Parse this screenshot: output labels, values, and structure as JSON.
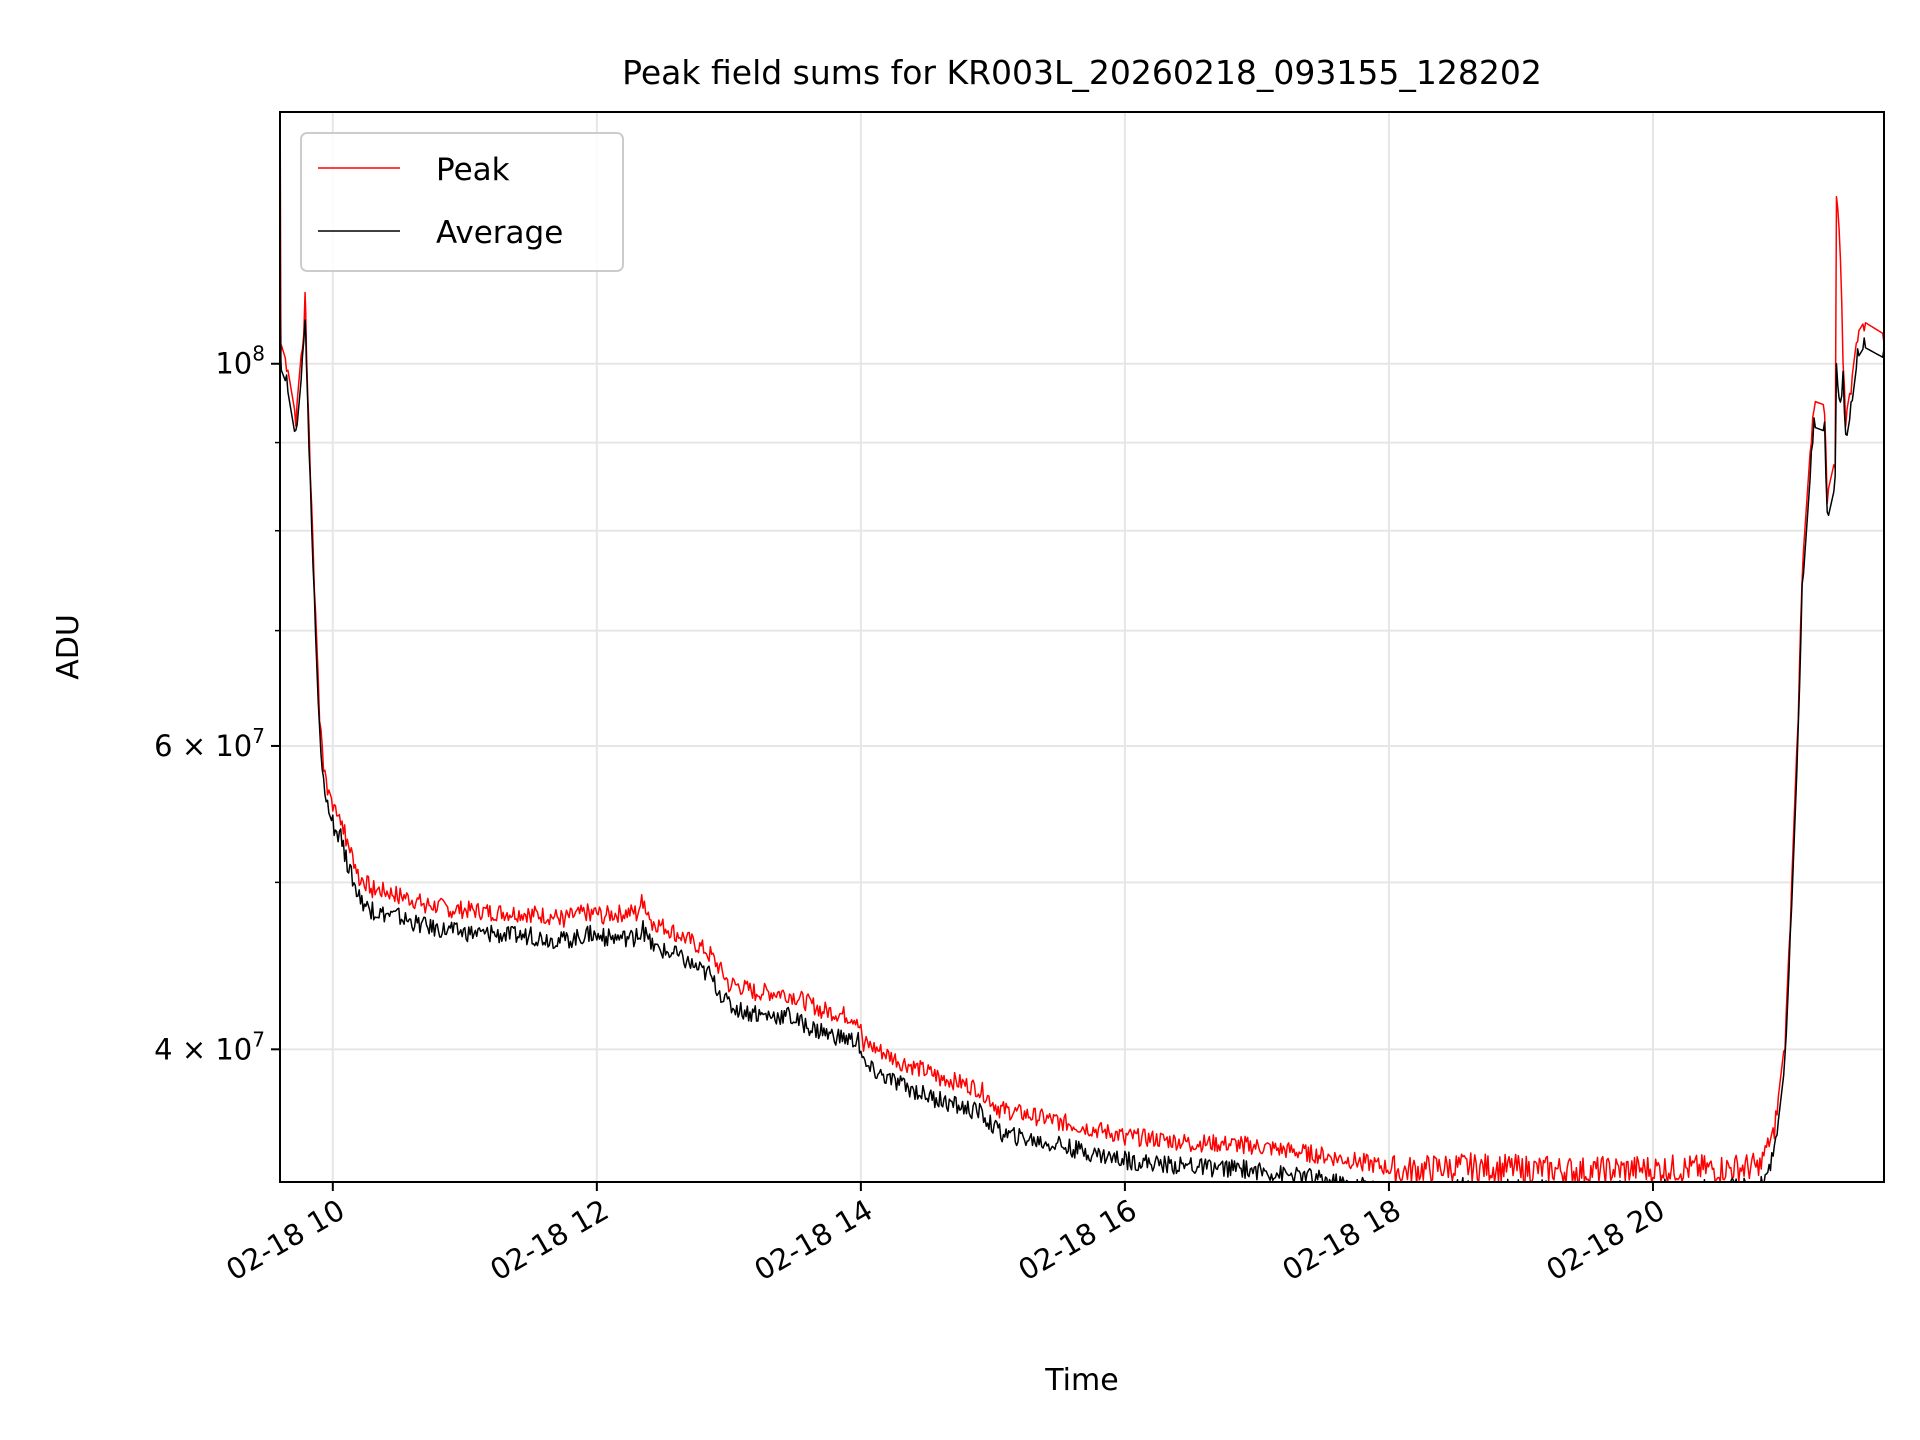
{
  "chart_data": {
    "type": "line",
    "title": "Peak field sums for KR003L_20260218_093155_128202",
    "xlabel": "Time",
    "ylabel": "ADU",
    "yscale": "log",
    "xlim": [
      9.6,
      21.75
    ],
    "ylim": [
      33500000,
      140000000
    ],
    "grid": true,
    "legend_position": "upper-left",
    "x_ticks": [
      {
        "value": 10,
        "label": "02-18 10"
      },
      {
        "value": 12,
        "label": "02-18 12"
      },
      {
        "value": 14,
        "label": "02-18 14"
      },
      {
        "value": 16,
        "label": "02-18 16"
      },
      {
        "value": 18,
        "label": "02-18 18"
      },
      {
        "value": 20,
        "label": "02-18 20"
      }
    ],
    "y_major_ticks": [
      {
        "value": 100000000,
        "base": "10",
        "exp": "8"
      },
      {
        "value": 60000000,
        "base": "6 × 10",
        "exp": "7"
      },
      {
        "value": 40000000,
        "base": "4 × 10",
        "exp": "7"
      }
    ],
    "y_minor_ticks": [
      50000000,
      70000000,
      80000000,
      90000000
    ],
    "noise": {
      "amplitude": 0.012,
      "step_hours": 0.01,
      "hi_noise_start": 18.0,
      "hi_noise_end": 20.8
    },
    "series": [
      {
        "name": "Peak",
        "color": "#ff0000",
        "offset": 1.012,
        "x": [
          9.6,
          9.601,
          9.607,
          9.65,
          9.72,
          9.77,
          9.78,
          9.79,
          9.795,
          9.8,
          9.81,
          9.83,
          9.86,
          9.9,
          9.93,
          9.96,
          10.0,
          10.06,
          10.1,
          10.2,
          10.3,
          10.5,
          10.7,
          10.9,
          11.2,
          11.5,
          11.75,
          11.95,
          12.05,
          12.3,
          12.35,
          12.42,
          12.6,
          12.85,
          13.0,
          13.2,
          13.45,
          13.7,
          13.98,
          14.02,
          14.3,
          14.6,
          14.9,
          15.05,
          15.5,
          16.0,
          16.5,
          16.9,
          17.4,
          17.8,
          18.1,
          18.5,
          19.0,
          19.5,
          20.0,
          20.5,
          20.8,
          20.92,
          21.0,
          21.04,
          21.1,
          21.13,
          21.2,
          21.22,
          21.3,
          21.32,
          21.38,
          21.39,
          21.42,
          21.44,
          21.46,
          21.5,
          21.55,
          21.6,
          21.75
        ],
        "y": [
          100000000,
          140000000,
          101500000,
          99000000,
          92000000,
          102000000,
          104000000,
          110000000,
          107000000,
          102000000,
          96000000,
          86000000,
          74000000,
          62000000,
          58000000,
          56200000,
          55000000,
          54000000,
          52500000,
          49800000,
          49000000,
          48600000,
          48000000,
          47700000,
          47500000,
          47400000,
          47100000,
          47500000,
          47300000,
          47500000,
          48300000,
          46900000,
          46200000,
          45000000,
          43200000,
          42700000,
          42600000,
          41700000,
          41200000,
          39900000,
          38900000,
          38100000,
          37500000,
          36500000,
          35900000,
          35200000,
          34900000,
          34800000,
          34400000,
          34000000,
          33600000,
          33800000,
          33700000,
          33600000,
          33700000,
          33700000,
          33800000,
          35500000,
          40000000,
          47000000,
          62000000,
          75000000,
          90000000,
          94000000,
          93500000,
          83000000,
          87000000,
          125000000,
          115000000,
          100000000,
          92000000,
          96000000,
          103000000,
          104500000,
          102800000
        ]
      },
      {
        "name": "Average",
        "color": "#000000",
        "offset": 0.988,
        "x": [
          9.6,
          9.601,
          9.607,
          9.65,
          9.72,
          9.77,
          9.78,
          9.79,
          9.795,
          9.8,
          9.81,
          9.83,
          9.86,
          9.9,
          9.93,
          9.96,
          10.0,
          10.06,
          10.1,
          10.2,
          10.3,
          10.5,
          10.7,
          10.9,
          11.2,
          11.5,
          11.75,
          11.95,
          12.05,
          12.3,
          12.35,
          12.42,
          12.6,
          12.85,
          13.0,
          13.2,
          13.45,
          13.7,
          13.98,
          14.02,
          14.3,
          14.6,
          14.9,
          15.05,
          15.5,
          16.0,
          16.5,
          16.9,
          17.4,
          17.8,
          18.1,
          18.5,
          19.0,
          19.5,
          20.0,
          20.5,
          20.8,
          20.92,
          21.0,
          21.04,
          21.1,
          21.13,
          21.2,
          21.22,
          21.3,
          21.32,
          21.38,
          21.39,
          21.42,
          21.44,
          21.46,
          21.5,
          21.55,
          21.6,
          21.75
        ],
        "y": [
          100000000,
          108000000,
          100500000,
          98500000,
          91500000,
          101000000,
          103000000,
          106000000,
          104000000,
          100000000,
          95000000,
          85500000,
          73500000,
          61500000,
          57500000,
          55800000,
          54700000,
          53700000,
          52200000,
          49500000,
          48700000,
          48300000,
          47700000,
          47400000,
          47200000,
          47100000,
          46800000,
          47200000,
          47000000,
          47000000,
          47500000,
          46400000,
          45900000,
          44700000,
          42900000,
          42400000,
          42300000,
          41400000,
          40900000,
          39600000,
          38600000,
          37800000,
          37200000,
          36200000,
          35600000,
          34900000,
          34600000,
          34500000,
          34100000,
          33700000,
          33300000,
          33500000,
          33400000,
          33300000,
          33400000,
          33400000,
          33500000,
          35200000,
          39700000,
          46700000,
          61500000,
          74500000,
          89000000,
          93000000,
          92500000,
          82000000,
          86000000,
          100000000,
          95000000,
          99000000,
          91000000,
          95000000,
          102000000,
          103500000,
          102000000
        ]
      }
    ]
  }
}
